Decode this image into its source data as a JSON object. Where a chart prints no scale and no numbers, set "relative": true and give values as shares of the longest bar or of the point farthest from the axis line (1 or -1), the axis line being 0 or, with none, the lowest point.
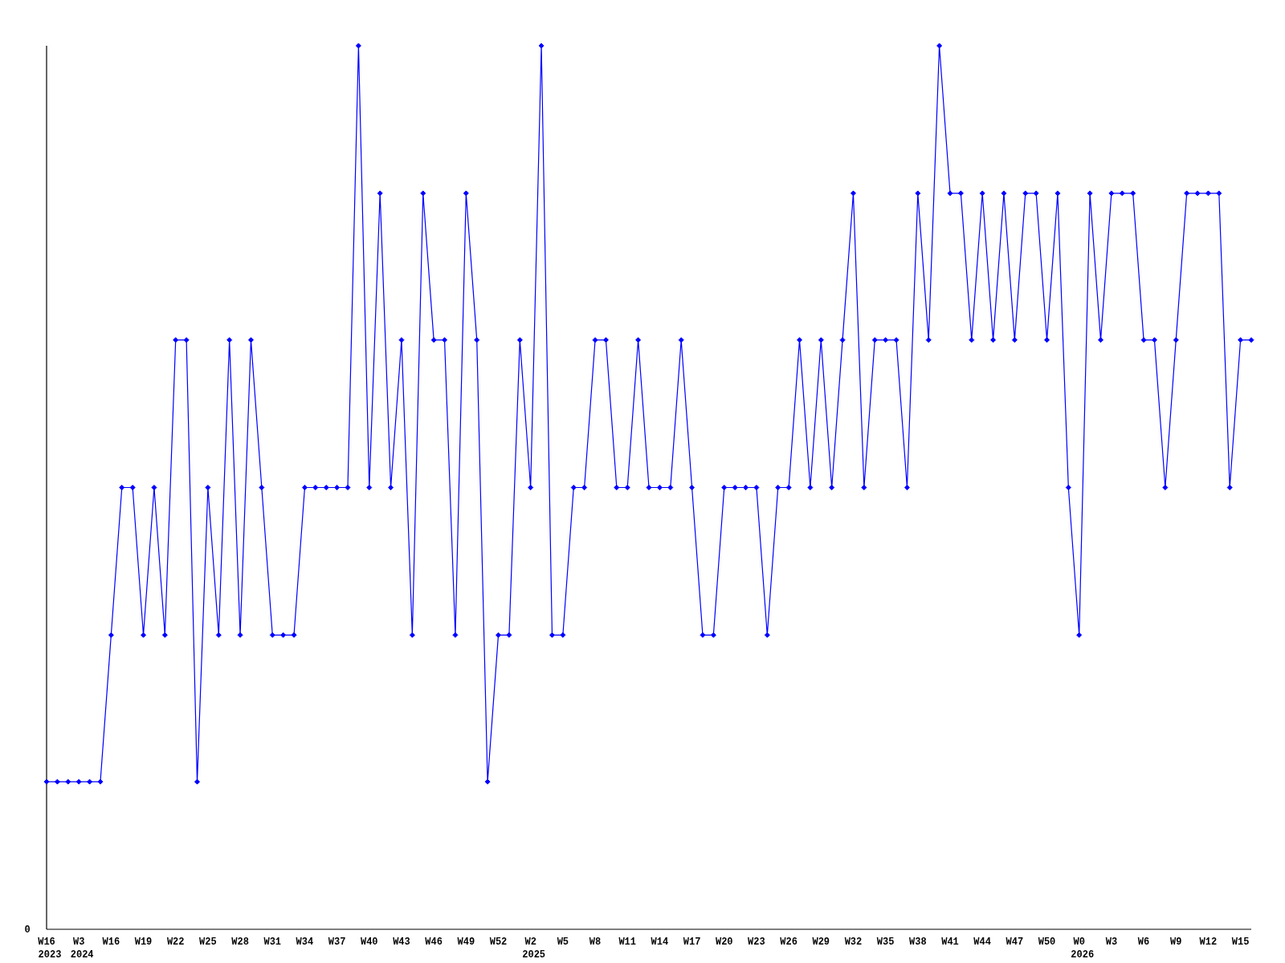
{
  "chart_data": {
    "type": "line",
    "relative": true,
    "marker": "diamond",
    "categories": [
      "W16 2023",
      null,
      null,
      "W3 2024",
      null,
      null,
      "W16",
      null,
      null,
      "W19",
      null,
      null,
      "W22",
      null,
      null,
      "W25",
      null,
      null,
      "W28",
      null,
      null,
      "W31",
      null,
      null,
      "W34",
      null,
      null,
      "W37",
      null,
      null,
      "W40",
      null,
      null,
      "W43",
      null,
      null,
      "W46",
      null,
      null,
      "W49",
      null,
      null,
      "W52",
      null,
      null,
      "W2 2025",
      null,
      null,
      "W5",
      null,
      null,
      "W8",
      null,
      null,
      "W11",
      null,
      null,
      "W14",
      null,
      null,
      "W17",
      null,
      null,
      "W20",
      null,
      null,
      "W23",
      null,
      null,
      "W26",
      null,
      null,
      "W29",
      null,
      null,
      "W32",
      null,
      null,
      "W35",
      null,
      null,
      "W38",
      null,
      null,
      "W41",
      null,
      null,
      "W44",
      null,
      null,
      "W47",
      null,
      null,
      "W50",
      null,
      null,
      "W0 2026",
      null,
      null,
      "W3",
      null,
      null,
      "W6",
      null,
      null,
      "W9",
      null,
      null,
      "W12",
      null,
      null,
      "W15",
      null
    ],
    "series": [
      {
        "color": "#0000ff",
        "values": [
          0.167,
          0.167,
          0.167,
          0.167,
          0.167,
          0.167,
          0.333,
          0.5,
          0.5,
          0.333,
          0.5,
          0.333,
          0.667,
          0.667,
          0.167,
          0.5,
          0.333,
          0.667,
          0.333,
          0.667,
          0.5,
          0.333,
          0.333,
          0.333,
          0.5,
          0.5,
          0.5,
          0.5,
          0.5,
          1,
          0.5,
          0.833,
          0.5,
          0.667,
          0.333,
          0.833,
          0.667,
          0.667,
          0.333,
          0.833,
          0.667,
          0.167,
          0.333,
          0.333,
          0.667,
          0.5,
          1,
          0.333,
          0.333,
          0.5,
          0.5,
          0.667,
          0.667,
          0.5,
          0.5,
          0.667,
          0.5,
          0.5,
          0.5,
          0.667,
          0.5,
          0.333,
          0.333,
          0.5,
          0.5,
          0.5,
          0.5,
          0.333,
          0.5,
          0.5,
          0.667,
          0.5,
          0.667,
          0.5,
          0.667,
          0.833,
          0.5,
          0.667,
          0.667,
          0.667,
          0.5,
          0.833,
          0.667,
          1,
          0.833,
          0.833,
          0.667,
          0.833,
          0.667,
          0.833,
          0.667,
          0.833,
          0.833,
          0.667,
          0.833,
          0.5,
          0.333,
          0.833,
          0.667,
          0.833,
          0.833,
          0.833,
          0.667,
          0.667,
          0.5,
          0.667,
          0.833,
          0.833,
          0.833,
          0.833,
          0.5,
          0.667,
          0.667
        ]
      }
    ],
    "annotations": [
      "0"
    ]
  }
}
